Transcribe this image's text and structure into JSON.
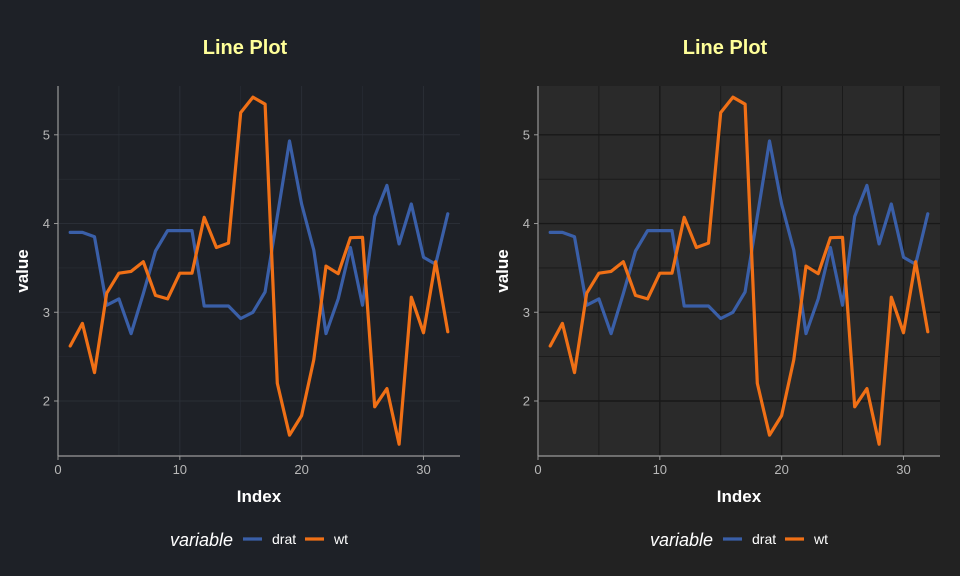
{
  "chart_data": [
    {
      "type": "line",
      "title": "Line Plot",
      "xlabel": "Index",
      "ylabel": "value",
      "xlim": [
        0,
        33
      ],
      "ylim": [
        1.38,
        5.55
      ],
      "xticks": [
        0,
        10,
        20,
        30
      ],
      "yticks": [
        2,
        3,
        4,
        5
      ],
      "x": [
        1,
        2,
        3,
        4,
        5,
        6,
        7,
        8,
        9,
        10,
        11,
        12,
        13,
        14,
        15,
        16,
        17,
        18,
        19,
        20,
        21,
        22,
        23,
        24,
        25,
        26,
        27,
        28,
        29,
        30,
        31,
        32
      ],
      "series": [
        {
          "name": "drat",
          "color": "#3a5fa8",
          "values": [
            3.9,
            3.9,
            3.85,
            3.08,
            3.15,
            2.76,
            3.21,
            3.69,
            3.92,
            3.92,
            3.92,
            3.07,
            3.07,
            3.07,
            2.93,
            3.0,
            3.23,
            4.08,
            4.93,
            4.22,
            3.7,
            2.76,
            3.15,
            3.73,
            3.08,
            4.08,
            4.43,
            3.77,
            4.22,
            3.62,
            3.54,
            4.11
          ]
        },
        {
          "name": "wt",
          "color": "#f07016",
          "values": [
            2.62,
            2.875,
            2.32,
            3.215,
            3.44,
            3.46,
            3.57,
            3.19,
            3.15,
            3.44,
            3.44,
            4.07,
            3.73,
            3.78,
            5.25,
            5.424,
            5.345,
            2.2,
            1.615,
            1.835,
            2.465,
            3.52,
            3.435,
            3.84,
            3.845,
            1.935,
            2.14,
            1.513,
            3.17,
            2.77,
            3.57,
            2.78
          ]
        }
      ],
      "legend": {
        "title": "variable",
        "position": "bottom"
      },
      "colors": {
        "background": "#1e2127",
        "grid": "#2a2e36",
        "axis": "#9a9a9a",
        "title": "#ffff99"
      }
    },
    {
      "type": "line",
      "title": "Line Plot",
      "xlabel": "Index",
      "ylabel": "value",
      "xlim": [
        0,
        33
      ],
      "ylim": [
        1.38,
        5.55
      ],
      "xticks": [
        0,
        10,
        20,
        30
      ],
      "yticks": [
        2,
        3,
        4,
        5
      ],
      "x": [
        1,
        2,
        3,
        4,
        5,
        6,
        7,
        8,
        9,
        10,
        11,
        12,
        13,
        14,
        15,
        16,
        17,
        18,
        19,
        20,
        21,
        22,
        23,
        24,
        25,
        26,
        27,
        28,
        29,
        30,
        31,
        32
      ],
      "series": [
        {
          "name": "drat",
          "color": "#3a5fa8",
          "values": [
            3.9,
            3.9,
            3.85,
            3.08,
            3.15,
            2.76,
            3.21,
            3.69,
            3.92,
            3.92,
            3.92,
            3.07,
            3.07,
            3.07,
            2.93,
            3.0,
            3.23,
            4.08,
            4.93,
            4.22,
            3.7,
            2.76,
            3.15,
            3.73,
            3.08,
            4.08,
            4.43,
            3.77,
            4.22,
            3.62,
            3.54,
            4.11
          ]
        },
        {
          "name": "wt",
          "color": "#f07016",
          "values": [
            2.62,
            2.875,
            2.32,
            3.215,
            3.44,
            3.46,
            3.57,
            3.19,
            3.15,
            3.44,
            3.44,
            4.07,
            3.73,
            3.78,
            5.25,
            5.424,
            5.345,
            2.2,
            1.615,
            1.835,
            2.465,
            3.52,
            3.435,
            3.84,
            3.845,
            1.935,
            2.14,
            1.513,
            3.17,
            2.77,
            3.57,
            2.78
          ]
        }
      ],
      "legend": {
        "title": "variable",
        "position": "bottom"
      },
      "colors": {
        "background": "#222222",
        "plot_background": "#2a2a2a",
        "grid": "#181818",
        "axis": "#9a9a9a",
        "title": "#ffff99"
      }
    }
  ]
}
